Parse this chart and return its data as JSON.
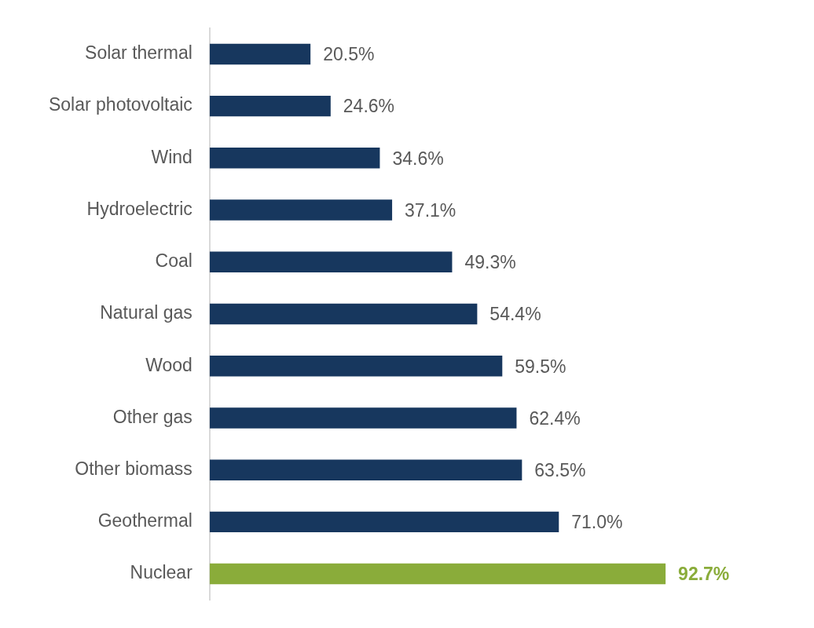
{
  "chart_data": {
    "type": "bar",
    "orientation": "horizontal",
    "categories": [
      "Solar thermal",
      "Solar photovoltaic",
      "Wind",
      "Hydroelectric",
      "Coal",
      "Natural gas",
      "Wood",
      "Other gas",
      "Other biomass",
      "Geothermal",
      "Nuclear"
    ],
    "values": [
      20.5,
      24.6,
      34.6,
      37.1,
      49.3,
      54.4,
      59.5,
      62.4,
      63.5,
      71.0,
      92.7
    ],
    "value_labels": [
      "20.5%",
      "24.6%",
      "34.6%",
      "37.1%",
      "49.3%",
      "54.4%",
      "59.5%",
      "62.4%",
      "63.5%",
      "71.0%",
      "92.7%"
    ],
    "colors": [
      "#17375e",
      "#17375e",
      "#17375e",
      "#17375e",
      "#17375e",
      "#17375e",
      "#17375e",
      "#17375e",
      "#17375e",
      "#17375e",
      "#8aac3a"
    ],
    "tick_labels": "y",
    "legend": false
  }
}
